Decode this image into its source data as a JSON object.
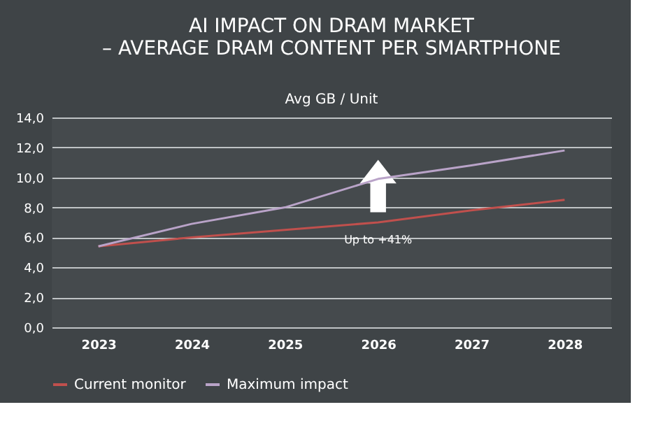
{
  "chart_data": {
    "type": "line",
    "title": "AI IMPACT ON DRAM MARKET\n– AVERAGE DRAM CONTENT PER SMARTPHONE",
    "ylabel": "Avg GB / Unit",
    "categories": [
      "2023",
      "2024",
      "2025",
      "2026",
      "2027",
      "2028"
    ],
    "series": [
      {
        "name": "Current monitor",
        "color": "#c0504d",
        "values": [
          5.4,
          6.0,
          6.5,
          7.0,
          7.8,
          8.5
        ]
      },
      {
        "name": "Maximum impact",
        "color": "#b9a3c8",
        "values": [
          5.4,
          6.9,
          8.0,
          9.9,
          10.8,
          11.8
        ]
      }
    ],
    "ylim": [
      0,
      14
    ],
    "yticks": [
      {
        "value": 0,
        "label": "0,0"
      },
      {
        "value": 2,
        "label": "2,0"
      },
      {
        "value": 4,
        "label": "4,0"
      },
      {
        "value": 6,
        "label": "6,0"
      },
      {
        "value": 8,
        "label": "8,0"
      },
      {
        "value": 10,
        "label": "10,0"
      },
      {
        "value": 12,
        "label": "12,0"
      },
      {
        "value": 14,
        "label": "14,0"
      }
    ],
    "annotations": [
      {
        "text": "Up to +41%",
        "x": "2026",
        "y": 7.0
      }
    ],
    "grid": "y",
    "legend": "bottom",
    "marker": "none",
    "line_style": "solid"
  }
}
